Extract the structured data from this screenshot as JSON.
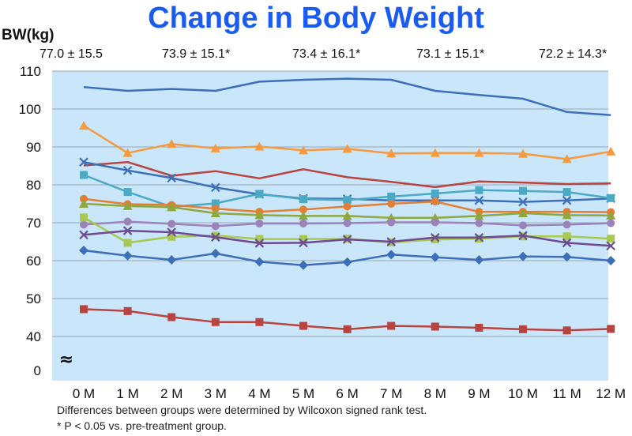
{
  "chart_data": {
    "type": "line",
    "title": "Change in Body Weight",
    "ylabel": "BW(kg)",
    "ylim": [
      40,
      110
    ],
    "yticks": [
      40,
      50,
      60,
      70,
      80,
      90,
      100,
      110
    ],
    "y_zero_label": "0",
    "axis_break": "≈",
    "grid": true,
    "background": "#c9e6fa",
    "categories": [
      "0 M",
      "1 M",
      "2 M",
      "3 M",
      "4 M",
      "5 M",
      "6 M",
      "7 M",
      "8 M",
      "9 M",
      "10 M",
      "11 M",
      "12 M"
    ],
    "annotations": [
      {
        "text": "77.0 ± 15.5",
        "category": "0 M"
      },
      {
        "text": "73.9 ± 15.1*",
        "category": "3 M"
      },
      {
        "text": "73.4 ± 16.1*",
        "category": "6 M"
      },
      {
        "text": "73.1 ± 15.1*",
        "category": "9 M"
      },
      {
        "text": "72.2 ± 14.3*",
        "category": "12 M"
      }
    ],
    "series": [
      {
        "color": "#3d6fb8",
        "marker": "none",
        "values": [
          105.8,
          104.8,
          105.3,
          104.8,
          107.2,
          107.7,
          108.0,
          107.7,
          104.8,
          103.7,
          102.7,
          99.2,
          98.4
        ]
      },
      {
        "color": "#f59a3e",
        "marker": "triangle",
        "values": [
          95.6,
          88.4,
          90.8,
          89.6,
          90.1,
          89.1,
          89.5,
          88.3,
          88.4,
          88.4,
          88.2,
          86.8,
          88.8
        ]
      },
      {
        "color": "#b8433f",
        "marker": "none",
        "values": [
          85.1,
          86.0,
          82.4,
          83.6,
          81.7,
          84.1,
          82.0,
          80.8,
          79.4,
          80.9,
          80.6,
          80.2,
          80.4
        ]
      },
      {
        "color": "#3d6fb8",
        "marker": "cross",
        "values": [
          86.0,
          83.8,
          81.8,
          79.3,
          77.5,
          76.4,
          76.3,
          75.9,
          75.9,
          75.9,
          75.5,
          75.9,
          76.4
        ]
      },
      {
        "color": "#4aaac6",
        "marker": "square",
        "values": [
          82.6,
          78.1,
          74.2,
          75.1,
          77.6,
          76.2,
          76.0,
          76.9,
          77.7,
          78.6,
          78.4,
          78.1,
          76.5
        ]
      },
      {
        "color": "#e37f33",
        "marker": "circle",
        "values": [
          76.3,
          74.9,
          74.7,
          73.7,
          72.9,
          73.5,
          74.3,
          75.0,
          75.6,
          72.9,
          72.9,
          72.9,
          72.8
        ]
      },
      {
        "color": "#8fa83e",
        "marker": "triangle",
        "values": [
          75.0,
          74.4,
          74.1,
          72.5,
          72.0,
          71.8,
          71.8,
          71.3,
          71.3,
          71.8,
          72.5,
          72.0,
          71.9
        ]
      },
      {
        "color": "#9b83b9",
        "marker": "circle",
        "values": [
          69.5,
          70.3,
          69.7,
          69.1,
          69.8,
          69.8,
          69.9,
          70.1,
          70.1,
          69.9,
          69.3,
          69.5,
          69.9
        ]
      },
      {
        "color": "#a7c94f",
        "marker": "square",
        "values": [
          71.4,
          64.7,
          66.3,
          66.6,
          65.7,
          65.7,
          65.8,
          64.8,
          65.6,
          65.8,
          66.4,
          66.4,
          65.8
        ]
      },
      {
        "color": "#6e4a94",
        "marker": "cross",
        "values": [
          66.8,
          67.9,
          67.5,
          66.2,
          64.6,
          64.7,
          65.6,
          65.0,
          66.1,
          66.1,
          66.6,
          64.7,
          63.9
        ]
      },
      {
        "color": "#3d6fb8",
        "marker": "diamond",
        "values": [
          62.7,
          61.3,
          60.2,
          61.9,
          59.7,
          58.8,
          59.6,
          61.6,
          60.9,
          60.2,
          61.1,
          61.0,
          60.0
        ]
      },
      {
        "color": "#b8433f",
        "marker": "square",
        "values": [
          47.2,
          46.7,
          45.1,
          43.8,
          43.8,
          42.8,
          41.9,
          42.8,
          42.6,
          42.3,
          41.9,
          41.6,
          42.0
        ]
      }
    ]
  },
  "footnotes": {
    "line1": "Differences between groups were determined by Wilcoxon signed rank test.",
    "line2": "* P < 0.05 vs. pre-treatment group."
  }
}
